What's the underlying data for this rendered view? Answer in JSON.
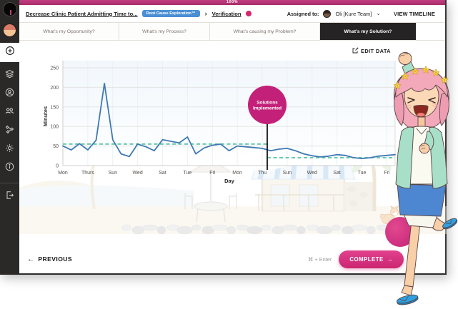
{
  "progress": {
    "value": "100%"
  },
  "header": {
    "title": "Decrease Clinic Patient Admitting Time to...",
    "badge": "Root Cause Exploration™",
    "chevron": "›",
    "step": "Verification",
    "assigned_label": "Assigned to:",
    "assignee": "Oli [Kure Team]",
    "caret": "⌄",
    "view_timeline": "VIEW TIMELINE"
  },
  "tabs": [
    {
      "label": "What's my Opportunity?"
    },
    {
      "label": "What's my Process?"
    },
    {
      "label": "What's causing my Problem?"
    },
    {
      "label": "What's my Solution?",
      "active": true
    }
  ],
  "toolbar": {
    "edit_data_label": "EDIT DATA"
  },
  "footer": {
    "previous_arrow": "←",
    "previous_label": "PREVIOUS",
    "shortcut": "⌘ + Enter",
    "complete_label": "COMPLETE",
    "complete_arrow": "→"
  },
  "sidebar": {
    "items": [
      {
        "icon": "plus-circle-icon",
        "active": true
      },
      {
        "icon": "layers-icon"
      },
      {
        "icon": "user-circle-icon"
      },
      {
        "icon": "team-icon"
      },
      {
        "icon": "nodes-icon"
      },
      {
        "icon": "gear-icon"
      },
      {
        "icon": "info-icon"
      },
      {
        "icon": "logout-icon"
      }
    ]
  },
  "colors": {
    "accent_pink": "#c32179",
    "progress_pink": "#b53273",
    "badge_blue": "#4a8fd4",
    "tab_dark": "#262324",
    "chart_line_blue": "#3e79b4",
    "mean_line_green": "#52c3a1"
  },
  "chart_data": {
    "type": "line",
    "title": "",
    "xlabel": "Day",
    "ylabel": "Minutes",
    "x_range": [
      0,
      40
    ],
    "ylim": [
      0,
      250
    ],
    "yticks": [
      0,
      50,
      100,
      150,
      200,
      250
    ],
    "grid": true,
    "x_tick_days": [
      0,
      3,
      6,
      9,
      12,
      15,
      18,
      21,
      24,
      27,
      30,
      33,
      36,
      39
    ],
    "x_tick_labels": [
      "Mon",
      "Thurs",
      "Sun",
      "Wed",
      "Sat",
      "Tue",
      "Fri",
      "Mon",
      "Thu",
      "Sun",
      "Wed",
      "Sat",
      "Tue",
      "Fri"
    ],
    "values": [
      50,
      40,
      56,
      40,
      65,
      210,
      66,
      30,
      23,
      55,
      48,
      38,
      66,
      62,
      58,
      73,
      30,
      45,
      52,
      55,
      38,
      50,
      48,
      46,
      44,
      38,
      42,
      44,
      38,
      30,
      25,
      22,
      24,
      28,
      26,
      20,
      18,
      20,
      24,
      26,
      28
    ],
    "line_color": "#3e79b4",
    "mean_line_color": "#52c3a1",
    "mean_before": 55,
    "mean_after": 20,
    "event_day": 24.6,
    "annotation": {
      "lines": [
        "Solutions",
        "Implemented"
      ],
      "color": "#c32179"
    }
  }
}
